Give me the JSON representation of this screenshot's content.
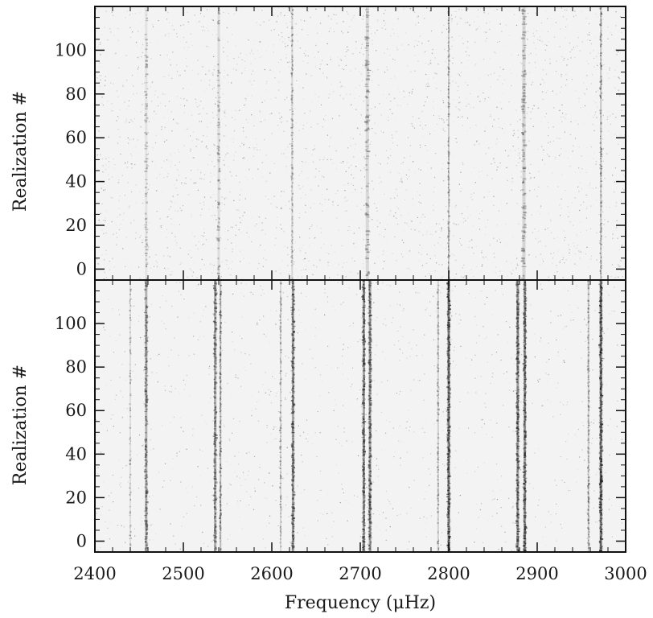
{
  "chart_data": [
    {
      "type": "heatmap",
      "panel": "top",
      "ylabel": "Realization #",
      "xlabel": "",
      "xlim": [
        2400,
        3000
      ],
      "ylim": [
        -5,
        120
      ],
      "yticks": [
        0,
        20,
        40,
        60,
        80,
        100
      ],
      "xticks": [
        2400,
        2500,
        2600,
        2700,
        2800,
        2900,
        3000
      ],
      "colormap": "greyscale (dark = high power)",
      "background_noise": 0.28,
      "lines": [
        {
          "x": 2458,
          "width": 3,
          "strength": 0.15
        },
        {
          "x": 2540,
          "width": 3,
          "strength": 0.2
        },
        {
          "x": 2623,
          "width": 2,
          "strength": 0.25
        },
        {
          "x": 2708,
          "width": 4,
          "strength": 0.22
        },
        {
          "x": 2800,
          "width": 2,
          "strength": 0.35
        },
        {
          "x": 2885,
          "width": 4,
          "strength": 0.25
        },
        {
          "x": 2972,
          "width": 2,
          "strength": 0.4
        }
      ]
    },
    {
      "type": "heatmap",
      "panel": "bottom",
      "ylabel": "Realization #",
      "xlabel": "Frequency (μHz)",
      "xlim": [
        2400,
        3000
      ],
      "ylim": [
        -5,
        120
      ],
      "yticks": [
        0,
        20,
        40,
        60,
        80,
        100
      ],
      "xticks": [
        2400,
        2500,
        2600,
        2700,
        2800,
        2900,
        3000
      ],
      "colormap": "greyscale (dark = high power)",
      "background_noise": 0.12,
      "lines": [
        {
          "x": 2440,
          "width": 2,
          "strength": 0.18
        },
        {
          "x": 2458,
          "width": 3,
          "strength": 0.55
        },
        {
          "x": 2536,
          "width": 3,
          "strength": 0.6
        },
        {
          "x": 2542,
          "width": 2,
          "strength": 0.5
        },
        {
          "x": 2610,
          "width": 2,
          "strength": 0.25
        },
        {
          "x": 2624,
          "width": 3,
          "strength": 0.65
        },
        {
          "x": 2704,
          "width": 3,
          "strength": 0.7
        },
        {
          "x": 2711,
          "width": 3,
          "strength": 0.7
        },
        {
          "x": 2788,
          "width": 2,
          "strength": 0.3
        },
        {
          "x": 2800,
          "width": 3,
          "strength": 0.85
        },
        {
          "x": 2878,
          "width": 3,
          "strength": 0.75
        },
        {
          "x": 2886,
          "width": 3,
          "strength": 0.75
        },
        {
          "x": 2958,
          "width": 2,
          "strength": 0.35
        },
        {
          "x": 2972,
          "width": 3,
          "strength": 0.9
        }
      ]
    }
  ]
}
